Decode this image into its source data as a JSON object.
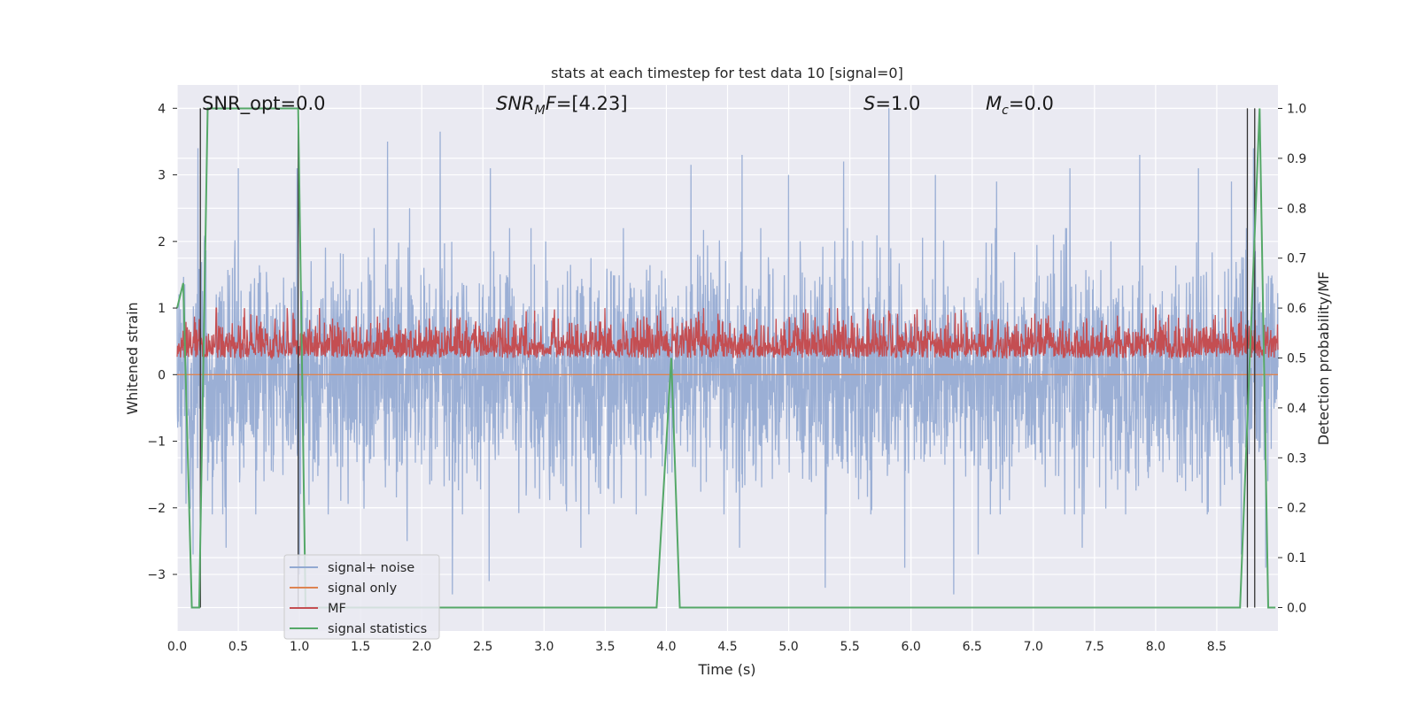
{
  "chart_data": {
    "type": "line",
    "title": "stats at each timestep for test data 10 [signal=0]",
    "xlabel": "Time (s)",
    "ylabel": "Whitened strain",
    "ylabel_right": "Detection probability/MF",
    "xlim": [
      0.0,
      9.0
    ],
    "ylim": [
      -3.85,
      4.35
    ],
    "ylim_right": [
      -0.047,
      1.047
    ],
    "x_ticks": [
      "0.0",
      "0.5",
      "1.0",
      "1.5",
      "2.0",
      "2.5",
      "3.0",
      "3.5",
      "4.0",
      "4.5",
      "5.0",
      "5.5",
      "6.0",
      "6.5",
      "7.0",
      "7.5",
      "8.0",
      "8.5"
    ],
    "y_ticks": [
      "−3",
      "−2",
      "−1",
      "0",
      "1",
      "2",
      "3",
      "4"
    ],
    "y_ticks_right": [
      "0.0",
      "0.1",
      "0.2",
      "0.3",
      "0.4",
      "0.5",
      "0.6",
      "0.7",
      "0.8",
      "0.9",
      "1.0"
    ],
    "grid": true,
    "legend_position": "lower-left",
    "annotations": {
      "snr_opt": "SNR_opt=0.0",
      "snr_mf_base": "SNR",
      "snr_mf_sub": "M",
      "snr_mf_rest": "F=[4.23]",
      "s_var": "S",
      "s_rest": "=1.0",
      "mc_var": "M",
      "mc_sub": "c",
      "mc_rest": "=0.0"
    },
    "series": [
      {
        "name": "signal+ noise",
        "color": "#92a9d2",
        "axis": "left",
        "description_points": {
          "x_range": [
            0.0,
            9.0
          ],
          "typical_band": [
            -1.1,
            1.4
          ],
          "spike_x": [
            0.17,
            0.5,
            0.98,
            1.72,
            1.9,
            2.15,
            2.56,
            4.2,
            4.62,
            5.0,
            5.45,
            5.82,
            6.2,
            6.7,
            7.3,
            7.87,
            8.35,
            8.62,
            8.8
          ],
          "spike_y": [
            3.4,
            3.1,
            3.1,
            3.5,
            2.5,
            3.65,
            3.1,
            3.15,
            3.3,
            3.0,
            3.2,
            4.0,
            3.0,
            2.9,
            3.1,
            3.3,
            3.1,
            2.9,
            3.4
          ],
          "trough_x": [
            0.13,
            0.4,
            1.0,
            1.88,
            2.25,
            2.55,
            3.3,
            4.6,
            5.3,
            5.95,
            6.35,
            6.55,
            7.4,
            8.7,
            8.9
          ],
          "trough_y": [
            -2.7,
            -2.6,
            -3.0,
            -2.5,
            -3.3,
            -3.1,
            -2.6,
            -2.6,
            -3.2,
            -2.9,
            -3.3,
            -2.7,
            -2.6,
            -2.7,
            -2.9
          ]
        }
      },
      {
        "name": "signal only",
        "color": "#dd8452",
        "axis": "left",
        "x": [
          0.0,
          9.0
        ],
        "y": [
          0.0,
          0.0
        ]
      },
      {
        "name": "MF",
        "color": "#c44e52",
        "axis": "right",
        "typical_band": [
          0.5,
          0.58
        ],
        "peak_x": [
          0.32,
          4.05,
          8.0
        ],
        "peak_y": [
          0.6,
          0.58,
          0.6
        ]
      },
      {
        "name": "signal statistics",
        "color": "#55a868",
        "axis": "right",
        "x": [
          0.0,
          0.05,
          0.12,
          0.18,
          0.25,
          0.99,
          1.02,
          1.05,
          3.92,
          4.04,
          4.11,
          8.69,
          8.85,
          8.92,
          8.98
        ],
        "y": [
          0.6,
          0.65,
          0.0,
          0.0,
          1.0,
          1.0,
          0.5,
          0.0,
          0.0,
          0.5,
          0.0,
          0.0,
          1.0,
          0.0,
          0.0
        ]
      }
    ],
    "vertical_lines": {
      "color": "#333333",
      "x": [
        0.19,
        0.99,
        8.75,
        8.81
      ]
    }
  }
}
